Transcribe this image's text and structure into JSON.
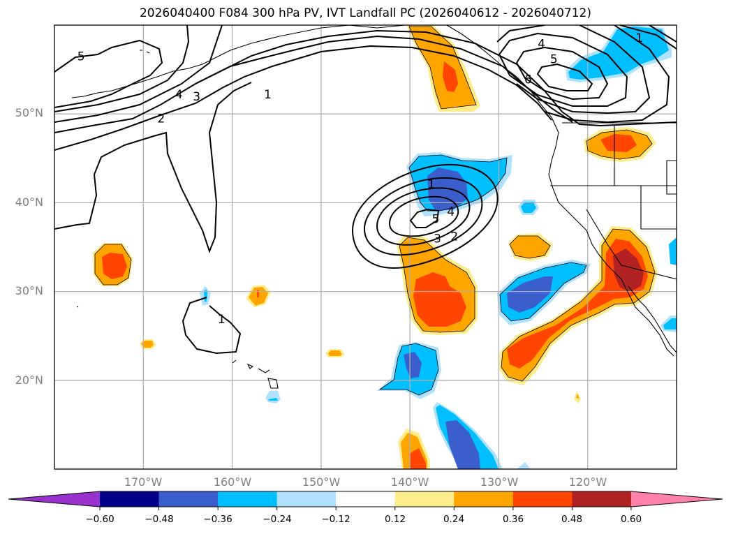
{
  "title": "2026040400 F084 300 hPa PV, IVT Landfall PC (2026040612 - 2026040712)",
  "map": {
    "projection": "PlateCarree",
    "extent": {
      "lon_min": -180,
      "lon_max": -110,
      "lat_min": 10,
      "lat_max": 60
    },
    "lat_labels": [
      {
        "value": 50,
        "text": "50°N"
      },
      {
        "value": 40,
        "text": "40°N"
      },
      {
        "value": 30,
        "text": "30°N"
      },
      {
        "value": 20,
        "text": "20°N"
      }
    ],
    "lon_labels": [
      {
        "value": -170,
        "text": "170°W"
      },
      {
        "value": -160,
        "text": "160°W"
      },
      {
        "value": -150,
        "text": "150°W"
      },
      {
        "value": -140,
        "text": "140°W"
      },
      {
        "value": -130,
        "text": "130°W"
      },
      {
        "value": -120,
        "text": "120°W"
      }
    ],
    "gridline_color": "#b0b0b0",
    "contour_field": "300 hPa PV",
    "contour_labels": [
      {
        "text": "5",
        "lon": -177,
        "lat": 56.5
      },
      {
        "text": "4",
        "lon": -166,
        "lat": 52.2
      },
      {
        "text": "3",
        "lon": -164,
        "lat": 52
      },
      {
        "text": "2",
        "lon": -168,
        "lat": 49.5
      },
      {
        "text": "1",
        "lon": -156,
        "lat": 52.2
      },
      {
        "text": "1",
        "lon": -137.6,
        "lat": 42.1
      },
      {
        "text": "5",
        "lon": -137.1,
        "lat": 38.2
      },
      {
        "text": "4",
        "lon": -135.4,
        "lat": 39.0
      },
      {
        "text": "3",
        "lon": -136.9,
        "lat": 36.0
      },
      {
        "text": "2",
        "lon": -135.0,
        "lat": 36.2
      },
      {
        "text": "4",
        "lon": -125.2,
        "lat": 57.9
      },
      {
        "text": "5",
        "lon": -123.8,
        "lat": 56.2
      },
      {
        "text": "6",
        "lon": -126.7,
        "lat": 53.9
      },
      {
        "text": "1",
        "lon": -114.2,
        "lat": 58.6
      },
      {
        "text": "1",
        "lon": -161.2,
        "lat": 26.9
      }
    ],
    "shaded_field": "IVT Landfall PC"
  },
  "colorbar": {
    "ticks": [
      "−0.60",
      "−0.48",
      "−0.36",
      "−0.24",
      "−0.12",
      "0.12",
      "0.24",
      "0.36",
      "0.48",
      "0.60"
    ],
    "colors": [
      "#9932cc",
      "#00008b",
      "#3a5fcd",
      "#00bfff",
      "#b0e2ff",
      "#ffffff",
      "#ffec8b",
      "#ffa500",
      "#ff4500",
      "#b22222",
      "#ff82ab"
    ],
    "extend": "both"
  }
}
